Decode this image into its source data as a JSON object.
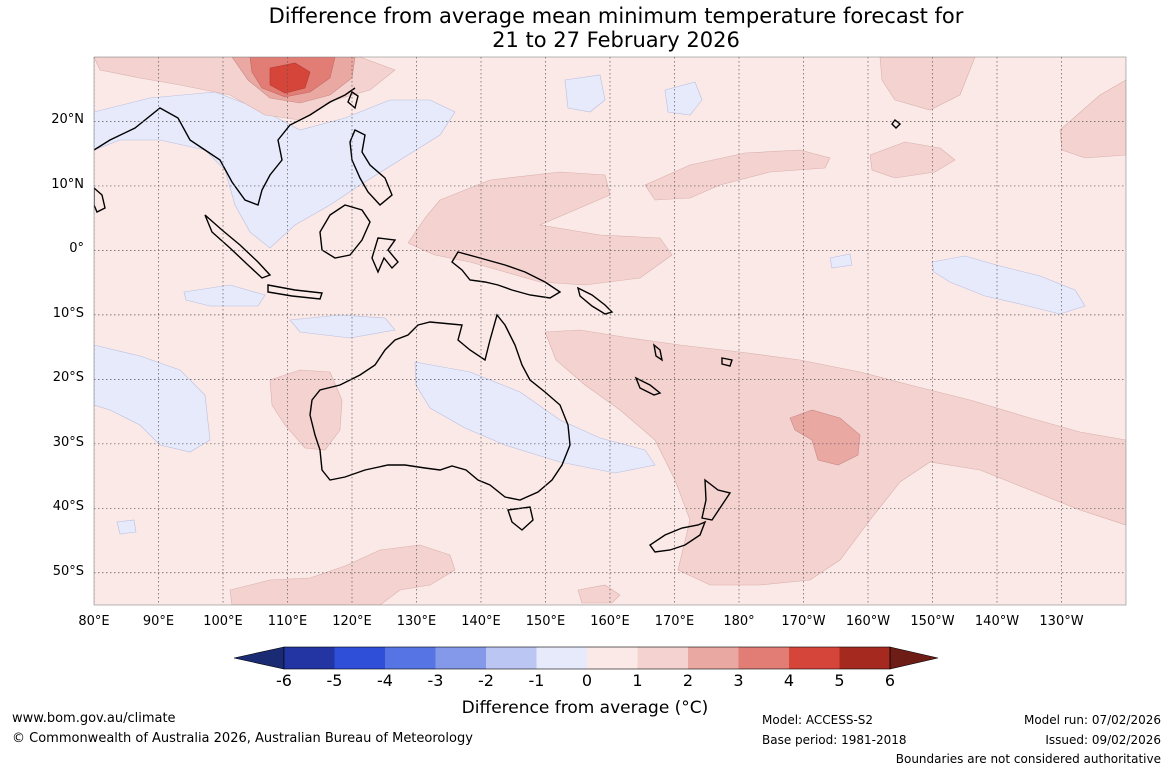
{
  "title": {
    "line1": "Difference from average mean minimum temperature forecast for",
    "line2": "21 to 27 February 2026"
  },
  "map": {
    "lon_range_deg": [
      80,
      240
    ],
    "lat_range_deg": [
      -55,
      30
    ],
    "background_anomaly_color": "#fbe9e7",
    "lat_labels": [
      {
        "lat": 20,
        "text": "20°N"
      },
      {
        "lat": 10,
        "text": "10°N"
      },
      {
        "lat": 0,
        "text": "0°"
      },
      {
        "lat": -10,
        "text": "10°S"
      },
      {
        "lat": -20,
        "text": "20°S"
      },
      {
        "lat": -30,
        "text": "30°S"
      },
      {
        "lat": -40,
        "text": "40°S"
      },
      {
        "lat": -50,
        "text": "50°S"
      }
    ],
    "lon_labels": [
      {
        "lon": 80,
        "text": "80°E"
      },
      {
        "lon": 90,
        "text": "90°E"
      },
      {
        "lon": 100,
        "text": "100°E"
      },
      {
        "lon": 110,
        "text": "110°E"
      },
      {
        "lon": 120,
        "text": "120°E"
      },
      {
        "lon": 130,
        "text": "130°E"
      },
      {
        "lon": 140,
        "text": "140°E"
      },
      {
        "lon": 150,
        "text": "150°E"
      },
      {
        "lon": 160,
        "text": "160°E"
      },
      {
        "lon": 170,
        "text": "170°E"
      },
      {
        "lon": 180,
        "text": "180°"
      },
      {
        "lon": 190,
        "text": "170°W"
      },
      {
        "lon": 200,
        "text": "160°W"
      },
      {
        "lon": 210,
        "text": "150°W"
      },
      {
        "lon": 220,
        "text": "140°W"
      },
      {
        "lon": 230,
        "text": "130°W"
      }
    ]
  },
  "colorbar": {
    "title": "Difference from average (°C)",
    "ticks": [
      "-6",
      "-5",
      "-4",
      "-3",
      "-2",
      "-1",
      "0",
      "1",
      "2",
      "3",
      "4",
      "5",
      "6"
    ],
    "colors": {
      "below_min": "#1a2a73",
      "bins": [
        "#2235a3",
        "#2f4fd8",
        "#5674e3",
        "#8599ea",
        "#bcc6f2",
        "#e6eafb",
        "#fbe9e7",
        "#f4d2cf",
        "#eaa8a3",
        "#e27d76",
        "#d64539",
        "#a62920"
      ],
      "above_max": "#6e1d16"
    }
  },
  "footer": {
    "website": "www.bom.gov.au/climate",
    "copyright": "© Commonwealth of Australia 2026, Australian Bureau of Meteorology",
    "model": "Model: ACCESS-S2",
    "base_period": "Base period: 1981-2018",
    "model_run": "Model run: 07/02/2026",
    "issued": "Issued: 09/02/2026",
    "disclaimer": "Boundaries are not considered authoritative"
  }
}
